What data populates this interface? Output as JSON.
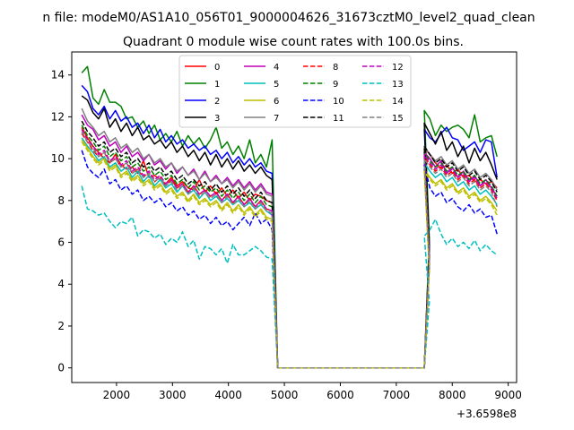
{
  "figure": {
    "suptitle": "n file: modeM0/AS1A10_056T01_9000004626_31673cztM0_level2_quad_clean",
    "title": "Quadrant 0 module wise count rates with 100.0s bins."
  },
  "chart_data": {
    "type": "line",
    "title": "Quadrant 0 module wise count rates with 100.0s bins.",
    "xlabel": "",
    "ylabel": "",
    "x_offset_label": "+3.6598e8",
    "xlim": [
      1200,
      9150
    ],
    "ylim": [
      -0.7,
      15.1
    ],
    "xticks": [
      2000,
      3000,
      4000,
      5000,
      6000,
      7000,
      8000,
      9000
    ],
    "yticks": [
      0,
      2,
      4,
      6,
      8,
      10,
      12,
      14
    ],
    "legend_location": "upper center",
    "gap": {
      "drop_start": 4780,
      "drop_end": 4880,
      "zero_start": 4880,
      "zero_end": 7500,
      "rise_end": 7600
    },
    "segment1_x_start": 1380,
    "segment2_x_end": 8800,
    "bin_width": 100,
    "series": [
      {
        "name": "0",
        "color": "#ff0000",
        "dash": "solid",
        "seg1": [
          11.5,
          11.0,
          10.6,
          10.3,
          10.0,
          9.8,
          10.2,
          9.7,
          9.5,
          9.6,
          9.3,
          9.9,
          9.1,
          9.2,
          9.0,
          8.8,
          9.1,
          8.7,
          8.9,
          8.6,
          8.5,
          9.0,
          8.4,
          8.7,
          8.3,
          8.6,
          8.2,
          8.5,
          8.1,
          8.4,
          8.0,
          8.3,
          8.2,
          8.0,
          7.9
        ],
        "seg2": [
          10.5,
          10.2,
          9.8,
          9.5,
          9.7,
          9.3,
          9.5,
          9.1,
          9.2,
          8.9,
          9.0,
          8.8,
          8.9,
          8.6
        ]
      },
      {
        "name": "1",
        "color": "#008000",
        "dash": "solid",
        "seg1": [
          14.1,
          14.4,
          12.9,
          12.6,
          13.3,
          12.7,
          12.7,
          12.5,
          11.9,
          12.0,
          11.5,
          11.8,
          11.2,
          11.6,
          10.9,
          11.2,
          10.8,
          11.3,
          10.6,
          11.1,
          10.7,
          11.0,
          10.5,
          10.9,
          11.5,
          10.5,
          10.8,
          10.2,
          10.6,
          10.0,
          10.9,
          9.8,
          10.2,
          9.6,
          10.9
        ],
        "seg2": [
          12.3,
          11.9,
          11.1,
          11.6,
          11.3,
          11.5,
          11.6,
          11.4,
          11.0,
          12.1,
          10.8,
          11.0,
          11.1,
          10.1
        ]
      },
      {
        "name": "2",
        "color": "#0000ff",
        "dash": "solid",
        "seg1": [
          13.5,
          13.2,
          12.4,
          12.1,
          12.5,
          11.9,
          12.3,
          11.8,
          12.0,
          11.5,
          11.7,
          11.2,
          11.6,
          11.0,
          11.4,
          10.8,
          11.1,
          10.7,
          10.9,
          10.5,
          10.7,
          10.4,
          10.6,
          10.2,
          10.4,
          10.0,
          10.3,
          9.8,
          10.1,
          9.7,
          10.0,
          9.6,
          9.8,
          9.4,
          9.3
        ],
        "seg2": [
          11.4,
          11.0,
          10.8,
          11.2,
          11.5,
          11.0,
          10.9,
          10.4,
          10.6,
          10.8,
          10.3,
          10.9,
          10.8,
          9.1
        ]
      },
      {
        "name": "3",
        "color": "#000000",
        "dash": "solid",
        "seg1": [
          13.0,
          12.8,
          12.2,
          11.9,
          12.4,
          11.5,
          11.9,
          11.3,
          11.7,
          11.1,
          11.5,
          10.9,
          11.1,
          10.7,
          10.9,
          10.5,
          10.8,
          10.3,
          10.6,
          10.1,
          10.4,
          9.9,
          10.3,
          9.7,
          10.2,
          9.6,
          10.0,
          9.5,
          9.9,
          9.4,
          9.7,
          9.3,
          9.6,
          9.2,
          9.0
        ],
        "seg2": [
          11.7,
          11.2,
          10.7,
          11.3,
          10.4,
          10.8,
          10.1,
          10.6,
          9.8,
          10.5,
          9.9,
          10.3,
          9.7,
          9.0
        ]
      },
      {
        "name": "4",
        "color": "#bf00bf",
        "dash": "solid",
        "seg1": [
          12.1,
          11.6,
          11.4,
          10.9,
          11.1,
          10.6,
          10.8,
          10.3,
          10.6,
          10.1,
          10.3,
          9.9,
          10.2,
          9.7,
          9.9,
          9.5,
          9.8,
          9.3,
          9.6,
          9.2,
          9.5,
          9.0,
          9.4,
          8.9,
          9.2,
          8.8,
          9.1,
          8.7,
          9.0,
          8.6,
          8.9,
          8.5,
          8.8,
          8.4,
          8.3
        ],
        "seg2": [
          10.3,
          10.0,
          9.6,
          9.9,
          9.3,
          9.6,
          9.1,
          9.4,
          8.9,
          9.2,
          8.7,
          9.0,
          8.6,
          8.2
        ]
      },
      {
        "name": "5",
        "color": "#00bfbf",
        "dash": "solid",
        "seg1": [
          11.0,
          10.6,
          10.3,
          9.9,
          10.1,
          9.6,
          9.8,
          9.4,
          9.6,
          9.1,
          9.4,
          8.9,
          9.2,
          8.7,
          9.0,
          8.6,
          8.8,
          8.4,
          8.7,
          8.3,
          8.5,
          8.1,
          8.4,
          8.0,
          8.2,
          7.9,
          8.1,
          7.8,
          8.0,
          7.7,
          7.9,
          7.6,
          7.8,
          7.5,
          7.3
        ],
        "seg2": [
          9.8,
          9.4,
          9.1,
          9.3,
          8.9,
          9.1,
          8.7,
          8.9,
          8.5,
          8.7,
          8.3,
          8.5,
          8.2,
          7.8
        ]
      },
      {
        "name": "6",
        "color": "#bfbf00",
        "dash": "solid",
        "seg1": [
          10.9,
          10.5,
          10.1,
          9.8,
          10.0,
          9.5,
          9.7,
          9.2,
          9.4,
          9.0,
          9.2,
          8.8,
          9.0,
          8.6,
          8.8,
          8.4,
          8.6,
          8.2,
          8.4,
          8.0,
          8.3,
          7.9,
          8.1,
          7.8,
          8.0,
          7.6,
          7.9,
          7.5,
          7.8,
          7.4,
          7.7,
          7.3,
          7.6,
          7.2,
          7.1
        ],
        "seg2": [
          9.5,
          9.1,
          8.8,
          9.0,
          8.6,
          8.8,
          8.4,
          8.6,
          8.2,
          8.4,
          8.0,
          8.2,
          7.9,
          7.5
        ]
      },
      {
        "name": "7",
        "color": "#808080",
        "dash": "solid",
        "seg1": [
          12.4,
          11.8,
          11.5,
          11.1,
          11.3,
          10.8,
          11.0,
          10.5,
          10.7,
          10.3,
          10.5,
          10.0,
          10.2,
          9.8,
          10.0,
          9.6,
          9.8,
          9.4,
          9.6,
          9.2,
          9.4,
          9.0,
          9.3,
          8.9,
          9.1,
          8.8,
          9.0,
          8.6,
          8.9,
          8.5,
          8.8,
          8.4,
          8.7,
          8.3,
          8.2
        ],
        "seg2": [
          10.6,
          10.2,
          9.9,
          10.1,
          9.7,
          9.9,
          9.5,
          9.7,
          9.3,
          9.5,
          9.1,
          9.3,
          9.0,
          8.5
        ]
      },
      {
        "name": "8",
        "color": "#ff0000",
        "dash": "dashed",
        "seg1": [
          11.2,
          10.8,
          10.4,
          10.1,
          10.3,
          9.8,
          10.0,
          9.6,
          9.8,
          9.3,
          9.5,
          9.1,
          9.4,
          8.9,
          9.1,
          8.7,
          9.0,
          8.6,
          8.8,
          8.4,
          8.7,
          8.3,
          8.5,
          8.2,
          8.4,
          8.0,
          8.3,
          7.9,
          8.2,
          7.8,
          8.1,
          7.7,
          8.0,
          7.6,
          7.5
        ],
        "seg2": [
          10.1,
          9.7,
          9.4,
          9.6,
          9.2,
          9.4,
          9.0,
          9.2,
          8.8,
          9.0,
          8.6,
          8.8,
          8.5,
          8.0
        ]
      },
      {
        "name": "9",
        "color": "#008000",
        "dash": "dashed",
        "seg1": [
          11.6,
          11.1,
          10.8,
          10.4,
          10.6,
          10.1,
          10.3,
          9.9,
          10.1,
          9.6,
          9.8,
          9.4,
          9.6,
          9.2,
          9.4,
          9.0,
          9.2,
          8.8,
          9.0,
          8.6,
          8.9,
          8.5,
          8.7,
          8.4,
          8.6,
          8.2,
          8.5,
          8.1,
          8.4,
          8.0,
          8.3,
          7.9,
          8.2,
          7.8,
          7.7
        ],
        "seg2": [
          10.3,
          9.9,
          9.6,
          9.8,
          9.4,
          9.6,
          9.2,
          9.4,
          9.0,
          9.2,
          8.8,
          9.0,
          8.7,
          8.2
        ]
      },
      {
        "name": "10",
        "color": "#0000ff",
        "dash": "dashed",
        "seg1": [
          10.4,
          9.6,
          9.3,
          9.1,
          9.5,
          8.8,
          9.0,
          8.5,
          8.7,
          8.3,
          8.5,
          8.0,
          8.2,
          7.9,
          8.1,
          7.7,
          7.9,
          7.5,
          7.7,
          7.3,
          7.5,
          7.1,
          7.3,
          6.9,
          7.2,
          6.8,
          7.0,
          6.6,
          6.9,
          7.2,
          6.8,
          7.4,
          6.9,
          7.1,
          6.6
        ],
        "seg2": [
          9.7,
          8.6,
          8.2,
          8.4,
          7.9,
          8.1,
          7.7,
          7.5,
          7.8,
          7.4,
          7.6,
          7.2,
          7.3,
          6.4
        ]
      },
      {
        "name": "11",
        "color": "#000000",
        "dash": "dashed",
        "seg1": [
          11.8,
          11.3,
          11.0,
          10.6,
          10.8,
          10.3,
          10.5,
          10.1,
          10.3,
          9.8,
          10.0,
          9.6,
          9.8,
          9.4,
          9.6,
          9.2,
          9.4,
          9.0,
          9.2,
          8.8,
          9.0,
          8.7,
          8.9,
          8.5,
          8.8,
          8.4,
          8.7,
          8.3,
          8.6,
          8.2,
          8.5,
          8.1,
          8.4,
          8.0,
          7.9
        ],
        "seg2": [
          10.6,
          10.2,
          9.8,
          10.0,
          9.6,
          9.8,
          9.4,
          9.6,
          9.2,
          9.4,
          9.0,
          9.2,
          8.9,
          8.4
        ]
      },
      {
        "name": "12",
        "color": "#bf00bf",
        "dash": "dashed",
        "seg1": [
          11.4,
          10.9,
          10.6,
          10.2,
          10.4,
          9.9,
          10.1,
          9.7,
          9.9,
          9.4,
          9.6,
          9.2,
          9.4,
          9.0,
          9.2,
          8.8,
          9.0,
          8.6,
          8.8,
          8.4,
          8.7,
          8.3,
          8.5,
          8.2,
          8.4,
          8.0,
          8.3,
          7.9,
          8.2,
          7.8,
          8.1,
          7.7,
          8.0,
          7.6,
          7.5
        ],
        "seg2": [
          10.2,
          9.8,
          9.5,
          9.7,
          9.3,
          9.5,
          9.1,
          9.3,
          8.9,
          9.1,
          8.7,
          8.9,
          8.6,
          8.1
        ]
      },
      {
        "name": "13",
        "color": "#00bfbf",
        "dash": "dashed",
        "seg1": [
          8.7,
          7.6,
          7.5,
          7.3,
          7.4,
          7.0,
          6.7,
          7.0,
          6.9,
          7.2,
          6.3,
          6.6,
          6.5,
          6.2,
          6.4,
          5.9,
          6.2,
          6.0,
          6.5,
          5.8,
          6.1,
          5.2,
          5.8,
          5.7,
          5.4,
          5.7,
          5.0,
          5.9,
          5.4,
          5.4,
          5.6,
          5.8,
          5.6,
          5.3,
          5.2
        ],
        "seg2": [
          6.3,
          6.6,
          7.1,
          6.4,
          5.9,
          6.2,
          5.8,
          6.0,
          5.7,
          6.1,
          5.6,
          5.9,
          5.6,
          5.4
        ]
      },
      {
        "name": "14",
        "color": "#bfbf00",
        "dash": "dashed",
        "seg1": [
          10.8,
          10.4,
          10.0,
          9.7,
          9.9,
          9.4,
          9.6,
          9.1,
          9.3,
          8.9,
          9.1,
          8.7,
          8.9,
          8.5,
          8.7,
          8.3,
          8.5,
          8.1,
          8.3,
          7.9,
          8.2,
          7.8,
          8.0,
          7.7,
          7.9,
          7.5,
          7.8,
          7.4,
          7.7,
          7.3,
          7.6,
          7.2,
          7.5,
          7.1,
          7.0
        ],
        "seg2": [
          9.4,
          9.0,
          8.7,
          8.9,
          8.5,
          8.7,
          8.3,
          8.5,
          8.1,
          8.3,
          7.9,
          8.1,
          7.8,
          7.3
        ]
      },
      {
        "name": "15",
        "color": "#808080",
        "dash": "dashed",
        "seg1": [
          11.3,
          10.8,
          10.5,
          10.1,
          10.3,
          9.8,
          10.0,
          9.6,
          9.8,
          9.3,
          9.5,
          9.1,
          9.3,
          8.9,
          9.1,
          8.7,
          8.9,
          8.5,
          8.7,
          8.3,
          8.6,
          8.2,
          8.4,
          8.1,
          8.3,
          7.9,
          8.2,
          7.8,
          8.1,
          7.7,
          8.0,
          7.6,
          7.9,
          7.5,
          7.4
        ],
        "seg2": [
          10.0,
          9.6,
          9.3,
          9.5,
          9.1,
          9.3,
          8.9,
          9.1,
          8.7,
          8.9,
          8.5,
          8.7,
          8.4,
          7.7
        ]
      }
    ]
  }
}
